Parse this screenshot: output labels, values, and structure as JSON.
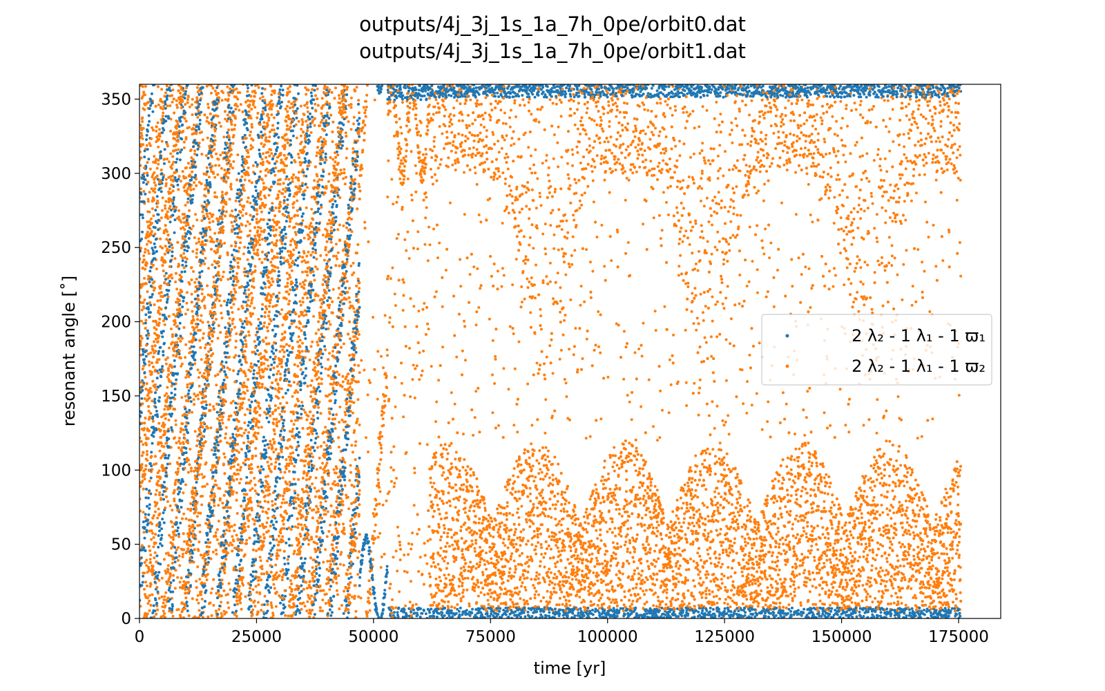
{
  "chart_data": {
    "type": "scatter",
    "title": [
      "outputs/4j_3j_1s_1a_7h_0pe/orbit0.dat",
      "outputs/4j_3j_1s_1a_7h_0pe/orbit1.dat"
    ],
    "xlabel": "time [yr]",
    "ylabel": "resonant angle [˚]",
    "xlim": [
      0,
      184000
    ],
    "ylim": [
      0,
      360
    ],
    "xticks": [
      0,
      25000,
      50000,
      75000,
      100000,
      125000,
      150000,
      175000
    ],
    "yticks": [
      0,
      50,
      100,
      150,
      200,
      250,
      300,
      350
    ],
    "grid": false,
    "legend_position": "center-right",
    "series": [
      {
        "name": "2 λ₂ - 1 λ₁ - 1 ϖ₁",
        "color": "#1f77b4",
        "description_of_distribution": "circulating 0–360 for t < 47000; librating near 0/360 (about -10 to 55 deg) for t > 47000",
        "regimes": [
          {
            "t_start": 0,
            "t_end": 47000,
            "y_min": 0,
            "y_max": 360
          },
          {
            "t_start": 47000,
            "t_end": 53000,
            "y_min": 0,
            "y_max": 55
          },
          {
            "t_start": 53000,
            "t_end": 175500,
            "y_min": -10,
            "y_max": 12
          }
        ]
      },
      {
        "name": "2 λ₂ - 1 λ₁ - 1 ϖ₂",
        "color": "#ff7f0e",
        "regimes": [
          {
            "t_start": 0,
            "t_end": 47000,
            "y_min": 0,
            "y_max": 360
          },
          {
            "t_start": 47000,
            "t_end": 62000,
            "y_min": 0,
            "y_max": 360
          },
          {
            "t_start": 62000,
            "t_end": 175500,
            "y_min": 0,
            "y_max": 125
          },
          {
            "t_start": 62000,
            "t_end": 175500,
            "y_min": 180,
            "y_max": 360
          }
        ]
      }
    ]
  },
  "legend": {
    "entries": [
      {
        "label": "2 λ₂ - 1 λ₁ - 1 ϖ₁",
        "color": "#1f77b4"
      },
      {
        "label": "2 λ₂ - 1 λ₁ - 1 ϖ₂",
        "color": "#ff7f0e"
      }
    ]
  }
}
